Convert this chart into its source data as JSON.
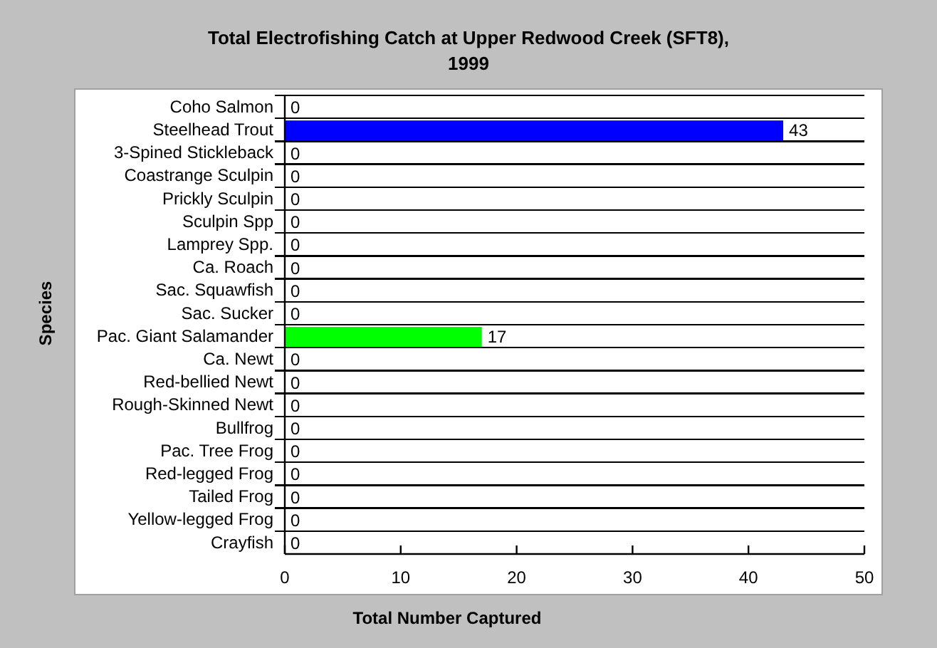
{
  "chart_data": {
    "type": "bar",
    "orientation": "horizontal",
    "title": "Total Electrofishing Catch at Upper Redwood Creek (SFT8),\n1999",
    "xlabel": "Total Number Captured",
    "ylabel": "Species",
    "categories": [
      "Coho Salmon",
      "Steelhead Trout",
      "3-Spined Stickleback",
      "Coastrange Sculpin",
      "Prickly Sculpin",
      "Sculpin Spp",
      "Lamprey Spp.",
      "Ca. Roach",
      "Sac. Squawfish",
      "Sac. Sucker",
      "Pac. Giant Salamander",
      "Ca. Newt",
      "Red-bellied Newt",
      "Rough-Skinned Newt",
      "Bullfrog",
      "Pac. Tree Frog",
      "Red-legged Frog",
      "Tailed Frog",
      "Yellow-legged Frog",
      "Crayfish"
    ],
    "values": [
      0,
      43,
      0,
      0,
      0,
      0,
      0,
      0,
      0,
      0,
      17,
      0,
      0,
      0,
      0,
      0,
      0,
      0,
      0,
      0
    ],
    "colors": [
      null,
      "#0000ff",
      null,
      null,
      null,
      null,
      null,
      null,
      null,
      null,
      "#00ff00",
      null,
      null,
      null,
      null,
      null,
      null,
      null,
      null,
      null
    ],
    "xlim": [
      0,
      50
    ],
    "xticks": [
      0,
      10,
      20,
      30,
      40,
      50
    ],
    "grid": "y",
    "data_labels": true
  }
}
